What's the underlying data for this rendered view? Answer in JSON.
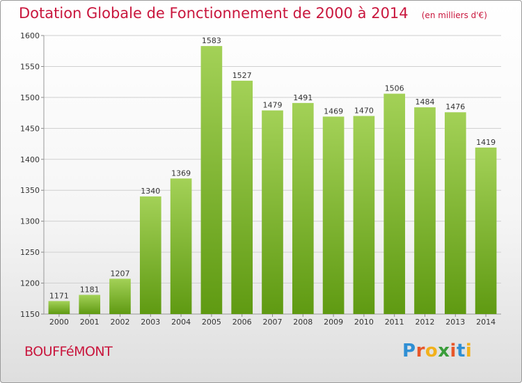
{
  "title": "Dotation Globale de Fonctionnement de 2000 à 2014",
  "unit_note": "(en milliers d'€)",
  "commune": "BOUFFéMONT",
  "logo_text": "Proxiti",
  "colors": {
    "title": "#c9163d",
    "bar_top": "#a3d157",
    "bar_bottom": "#5f9a12",
    "grid": "#cfcfcf"
  },
  "chart_data": {
    "type": "bar",
    "categories": [
      "2000",
      "2001",
      "2002",
      "2003",
      "2004",
      "2005",
      "2006",
      "2007",
      "2008",
      "2009",
      "2010",
      "2011",
      "2012",
      "2013",
      "2014"
    ],
    "values": [
      1171,
      1181,
      1207,
      1340,
      1369,
      1583,
      1527,
      1479,
      1491,
      1469,
      1470,
      1506,
      1484,
      1476,
      1419
    ],
    "ylim": [
      1150,
      1600
    ],
    "yticks": [
      1150,
      1200,
      1250,
      1300,
      1350,
      1400,
      1450,
      1500,
      1550,
      1600
    ],
    "xlabel": "",
    "ylabel": "",
    "grid": true
  }
}
